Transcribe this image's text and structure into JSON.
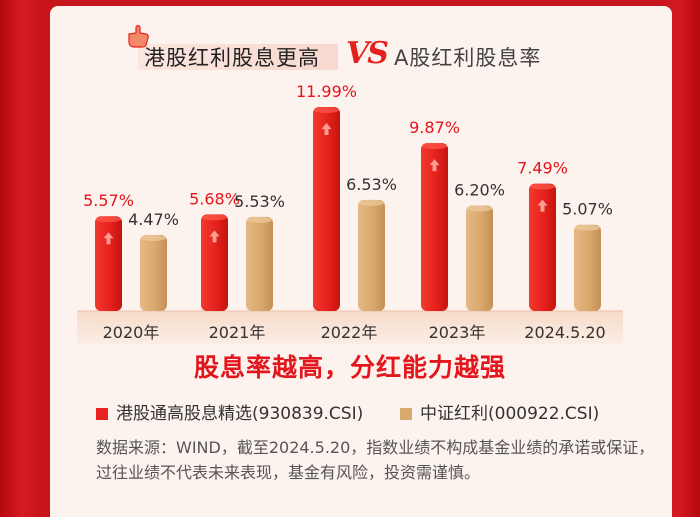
{
  "title": {
    "left": "港股红利股息更高",
    "vs": "VS",
    "right": "A股红利股息率"
  },
  "slogan": "股息率越高，分红能力越强",
  "legend": [
    {
      "label": "港股通高股息精选(930839.CSI)",
      "color": "#e8231f"
    },
    {
      "label": "中证红利(000922.CSI)",
      "color": "#d9a86c"
    }
  ],
  "note": "数据来源：WIND，截至2024.5.20，指数业绩不构成基金业绩的承诺或保证，过往业绩不代表未来表现，基金有风险，投资需谨慎。",
  "colors": {
    "hk": "#e8231f",
    "a": "#d9a86c",
    "hk_label": "#e3161d",
    "a_label": "#333333"
  },
  "chart_data": {
    "type": "bar",
    "categories": [
      "2020年",
      "2021年",
      "2022年",
      "2023年",
      "2024.5.20"
    ],
    "series": [
      {
        "name": "港股通高股息精选(930839.CSI)",
        "values": [
          5.57,
          5.68,
          11.99,
          9.87,
          7.49
        ],
        "labels": [
          "5.57%",
          "5.68%",
          "11.99%",
          "9.87%",
          "7.49%"
        ]
      },
      {
        "name": "中证红利(000922.CSI)",
        "values": [
          4.47,
          5.53,
          6.53,
          6.2,
          5.07
        ],
        "labels": [
          "4.47%",
          "5.53%",
          "6.53%",
          "6.20%",
          "5.07%"
        ]
      }
    ],
    "unit": "%",
    "ylim": [
      0,
      13
    ],
    "grid": false,
    "legend_position": "bottom"
  }
}
